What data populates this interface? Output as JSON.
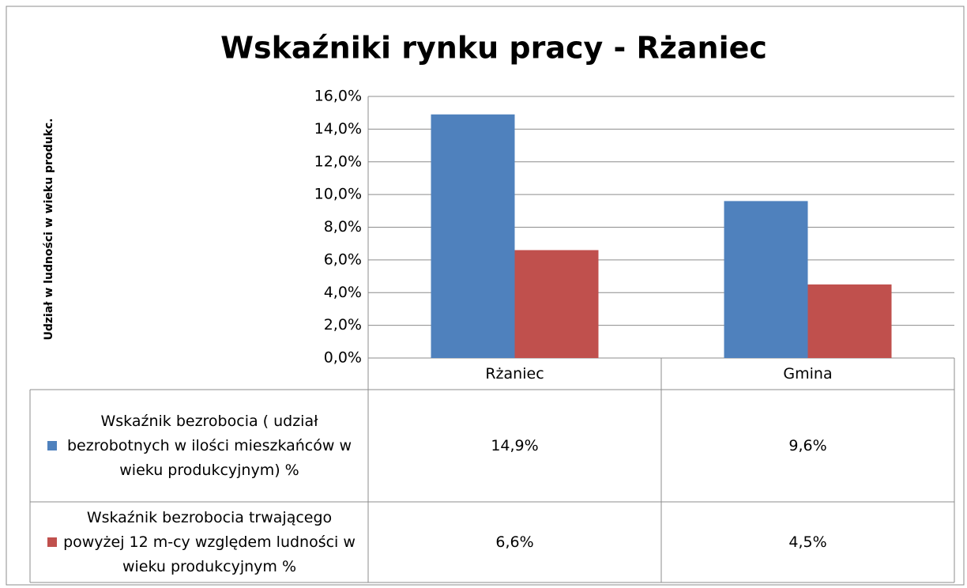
{
  "chart_data": {
    "type": "bar",
    "title": "Wskaźniki rynku pracy - Rżaniec",
    "y_label": "Udział w ludności w wieku produkc.",
    "categories": [
      "Rżaniec",
      "Gmina"
    ],
    "series": [
      {
        "name": "Wskaźnik bezrobocia ( udział bezrobotnych w ilości mieszkańców w wieku produkcyjnym) %",
        "color": "#4f81bd",
        "values": [
          14.9,
          9.6
        ],
        "value_labels": [
          "14,9%",
          "9,6%"
        ]
      },
      {
        "name": "Wskaźnik bezrobocia trwającego powyżej 12 m-cy względem ludności w wieku produkcyjnym %",
        "color": "#c0504d",
        "values": [
          6.6,
          4.5
        ],
        "value_labels": [
          "6,6%",
          "4,5%"
        ]
      }
    ],
    "ylim": [
      0,
      16
    ],
    "yticks": [
      {
        "value": 0,
        "label": "0,0%"
      },
      {
        "value": 2,
        "label": "2,0%"
      },
      {
        "value": 4,
        "label": "4,0%"
      },
      {
        "value": 6,
        "label": "6,0%"
      },
      {
        "value": 8,
        "label": "8,0%"
      },
      {
        "value": 10,
        "label": "10,0%"
      },
      {
        "value": 12,
        "label": "12,0%"
      },
      {
        "value": 14,
        "label": "14,0%"
      },
      {
        "value": 16,
        "label": "16,0%"
      }
    ],
    "grid": true,
    "legend": "table"
  }
}
